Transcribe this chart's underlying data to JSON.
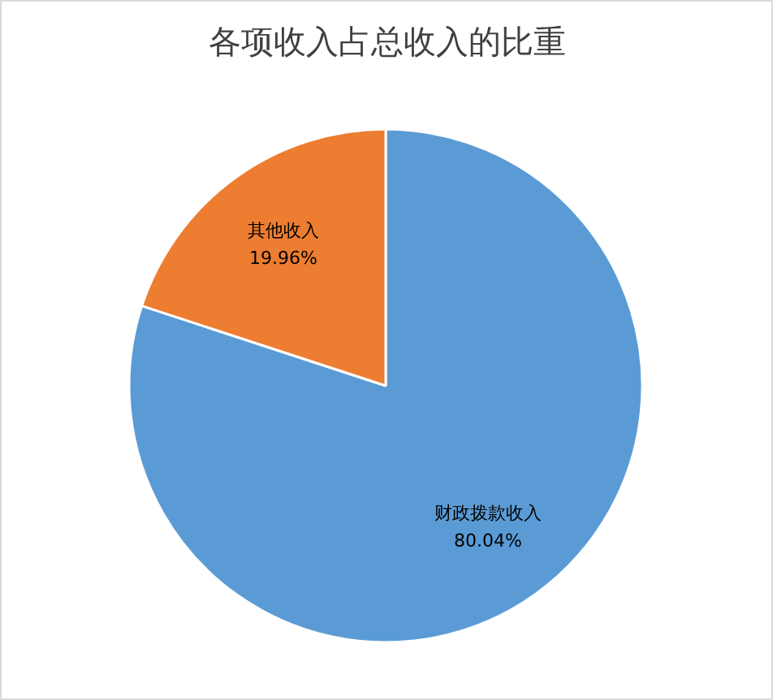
{
  "chart_data": {
    "type": "pie",
    "title": "各项收入占总收入的比重",
    "categories": [
      "财政拨款收入",
      "其他收入"
    ],
    "values": [
      80.04,
      19.96
    ],
    "value_labels": [
      "80.04%",
      "19.96%"
    ],
    "colors": [
      "#5b9bd5",
      "#ed7d31"
    ]
  }
}
